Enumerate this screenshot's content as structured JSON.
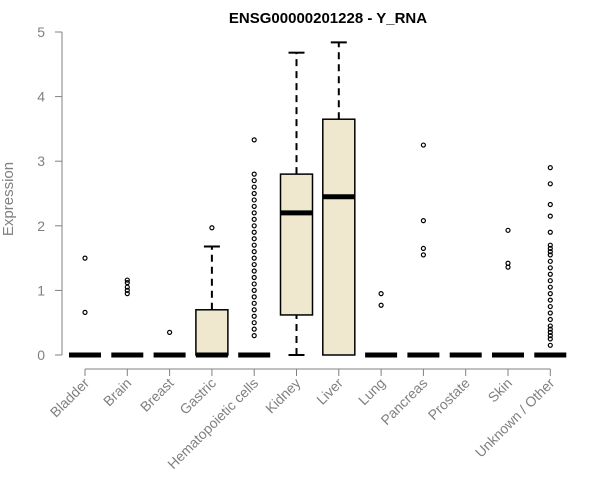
{
  "chart_data": {
    "type": "boxplot",
    "title": "ENSG00000201228 - Y_RNA",
    "xlabel": "",
    "ylabel": "Expression",
    "ylim": [
      0,
      5
    ],
    "yticks": [
      "0",
      "1",
      "2",
      "3",
      "4",
      "5"
    ],
    "box_fill": "#efe8cf",
    "axis_color": "#808080",
    "categories": [
      "Bladder",
      "Brain",
      "Breast",
      "Gastric",
      "Hematopoietic cells",
      "Kidney",
      "Liver",
      "Lung",
      "Pancreas",
      "Prostate",
      "Skin",
      "Unknown / Other"
    ],
    "boxes": [
      {
        "min": 0,
        "q1": 0,
        "median": 0,
        "q3": 0,
        "max": 0,
        "outliers": [
          0.66,
          1.5
        ]
      },
      {
        "min": 0,
        "q1": 0,
        "median": 0,
        "q3": 0,
        "max": 0,
        "outliers": [
          0.95,
          1.0,
          1.05,
          1.12,
          1.16
        ]
      },
      {
        "min": 0,
        "q1": 0,
        "median": 0,
        "q3": 0,
        "max": 0,
        "outliers": [
          0.35
        ]
      },
      {
        "min": 0,
        "q1": 0,
        "median": 0,
        "q3": 0.7,
        "max": 1.68,
        "outliers": [
          1.97
        ]
      },
      {
        "min": 0,
        "q1": 0,
        "median": 0,
        "q3": 0,
        "max": 0,
        "outliers": [
          0.3,
          0.4,
          0.5,
          0.6,
          0.7,
          0.8,
          0.9,
          1.0,
          1.1,
          1.2,
          1.3,
          1.4,
          1.5,
          1.6,
          1.7,
          1.8,
          1.9,
          2.0,
          2.1,
          2.2,
          2.3,
          2.4,
          2.5,
          2.6,
          2.7,
          2.8,
          3.33
        ]
      },
      {
        "min": 0,
        "q1": 0.62,
        "median": 2.2,
        "q3": 2.8,
        "max": 4.68,
        "outliers": []
      },
      {
        "min": 0,
        "q1": 0,
        "median": 2.45,
        "q3": 3.65,
        "max": 4.84,
        "outliers": []
      },
      {
        "min": 0,
        "q1": 0,
        "median": 0,
        "q3": 0,
        "max": 0,
        "outliers": [
          0.77,
          0.95
        ]
      },
      {
        "min": 0,
        "q1": 0,
        "median": 0,
        "q3": 0,
        "max": 0,
        "outliers": [
          1.55,
          1.65,
          2.08,
          3.25
        ]
      },
      {
        "min": 0,
        "q1": 0,
        "median": 0,
        "q3": 0,
        "max": 0,
        "outliers": []
      },
      {
        "min": 0,
        "q1": 0,
        "median": 0,
        "q3": 0,
        "max": 0,
        "outliers": [
          1.36,
          1.42,
          1.93
        ]
      },
      {
        "min": 0,
        "q1": 0,
        "median": 0,
        "q3": 0,
        "max": 0,
        "outliers": [
          0.15,
          0.25,
          0.3,
          0.35,
          0.4,
          0.45,
          0.55,
          0.65,
          0.75,
          0.85,
          0.95,
          1.05,
          1.15,
          1.25,
          1.35,
          1.45,
          1.55,
          1.6,
          1.65,
          1.7,
          1.9,
          2.15,
          2.33,
          2.65,
          2.9
        ]
      }
    ]
  }
}
